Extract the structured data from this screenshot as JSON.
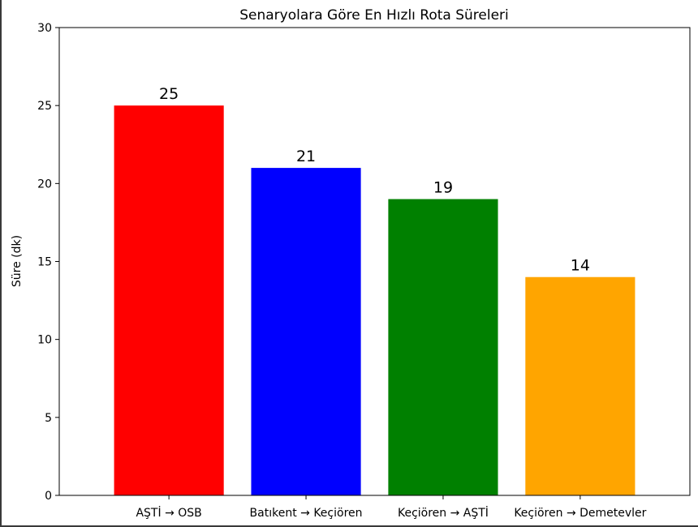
{
  "chart_data": {
    "type": "bar",
    "title": "Senaryolara Göre En Hızlı Rota Süreleri",
    "xlabel": "",
    "ylabel": "Süre (dk)",
    "categories": [
      "AŞTİ → OSB",
      "Batıkent → Keçiören",
      "Keçiören → AŞTİ",
      "Keçiören → Demetevler"
    ],
    "values": [
      25,
      21,
      19,
      14
    ],
    "data_labels": [
      "25",
      "21",
      "19",
      "14"
    ],
    "colors": [
      "#ff0000",
      "#0000ff",
      "#008000",
      "#ffa500"
    ],
    "ylim": [
      0,
      30
    ],
    "yticks": [
      0,
      5,
      10,
      15,
      20,
      25,
      30
    ],
    "grid": false,
    "legend": "none"
  }
}
